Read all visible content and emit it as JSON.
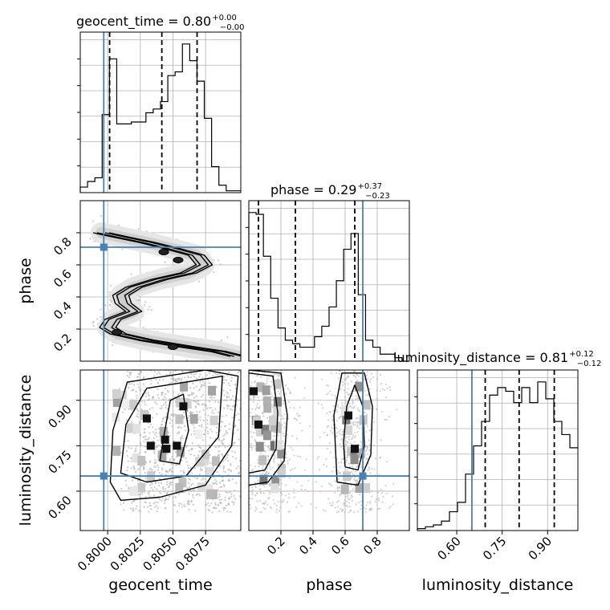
{
  "colors": {
    "truth": "#4682b4",
    "grid": "#b0b0b0",
    "hist": "#000000",
    "quantile": "#000000",
    "density": "#000000",
    "points": "#b4b4b4"
  },
  "chart_data": {
    "type": "corner",
    "parameters": [
      "geocent_time",
      "phase",
      "luminosity_distance"
    ],
    "truths": {
      "geocent_time": 0.7997,
      "phase": 0.71,
      "luminosity_distance": 0.65
    },
    "grid": true,
    "marginals": [
      {
        "param": "geocent_time",
        "title": {
          "main": "geocent_time = 0.80",
          "plus": "+0.00",
          "minus": "−0.00"
        },
        "range": [
          0.7979,
          0.8102
        ],
        "quantiles": [
          0.80015,
          0.80415,
          0.80685
        ],
        "ticks": [
          0.8,
          0.8025,
          0.805,
          0.8075
        ],
        "tick_labels": [
          "0.8000",
          "0.8025",
          "0.8050",
          "0.8075"
        ],
        "counts": [
          3,
          6,
          8,
          42,
          72,
          37,
          37,
          38,
          38,
          43,
          45,
          49,
          63,
          65,
          80,
          71,
          60,
          40,
          14,
          4,
          1,
          1
        ]
      },
      {
        "param": "phase",
        "title": {
          "main": "phase = 0.29",
          "plus": "+0.37",
          "minus": "−0.23"
        },
        "range": [
          0.0,
          1.0
        ],
        "quantiles": [
          0.06,
          0.29,
          0.66
        ],
        "ticks": [
          0.2,
          0.4,
          0.6,
          0.8
        ],
        "tick_labels": [
          "0.2",
          "0.4",
          "0.6",
          "0.8"
        ],
        "counts": [
          85,
          84,
          60,
          36,
          19,
          12,
          10,
          8,
          8,
          14,
          20,
          31,
          46,
          64,
          73,
          38,
          12,
          8,
          4,
          4,
          2,
          0
        ]
      },
      {
        "param": "luminosity_distance",
        "title": {
          "main": "luminosity_distance = 0.81",
          "plus": "+0.12",
          "minus": "−0.12"
        },
        "range": [
          0.47,
          1.0
        ],
        "quantiles": [
          0.694,
          0.806,
          0.922
        ],
        "ticks": [
          0.6,
          0.75,
          0.9
        ],
        "tick_labels": [
          "0.60",
          "0.75",
          "0.90"
        ],
        "counts": [
          1,
          2,
          3,
          5,
          10,
          15,
          30,
          45,
          58,
          72,
          76,
          74,
          68,
          76,
          68,
          79,
          70,
          58,
          51,
          44
        ]
      }
    ],
    "joint": [
      {
        "x": "geocent_time",
        "y": "phase",
        "yticks": [
          0.2,
          0.4,
          0.6,
          0.8
        ],
        "ytick_labels": [
          "0.2",
          "0.4",
          "0.6",
          "0.8"
        ],
        "density_path": [
          [
            0.7995,
            0.8
          ],
          [
            0.8012,
            0.77
          ],
          [
            0.803,
            0.74
          ],
          [
            0.805,
            0.7
          ],
          [
            0.8068,
            0.66
          ],
          [
            0.8074,
            0.6
          ],
          [
            0.8062,
            0.55
          ],
          [
            0.804,
            0.51
          ],
          [
            0.802,
            0.46
          ],
          [
            0.801,
            0.41
          ],
          [
            0.8012,
            0.36
          ],
          [
            0.802,
            0.31
          ],
          [
            0.8004,
            0.26
          ],
          [
            0.8,
            0.21
          ],
          [
            0.8008,
            0.17
          ],
          [
            0.803,
            0.13
          ],
          [
            0.806,
            0.09
          ],
          [
            0.8085,
            0.06
          ],
          [
            0.81,
            0.03
          ]
        ],
        "dense_spots": [
          [
            0.8007,
            0.18
          ],
          [
            0.805,
            0.09
          ],
          [
            0.8043,
            0.68
          ],
          [
            0.8054,
            0.63
          ]
        ]
      },
      {
        "x": "geocent_time",
        "y": "luminosity_distance",
        "yticks": [
          0.6,
          0.75,
          0.9
        ],
        "ytick_labels": [
          "0.60",
          "0.75",
          "0.90"
        ],
        "dense_spots": [
          [
            0.8053,
            0.75
          ],
          [
            0.8058,
            0.88
          ],
          [
            0.8044,
            0.77
          ],
          [
            0.8033,
            0.75
          ],
          [
            0.803,
            0.84
          ],
          [
            0.8045,
            0.74
          ]
        ]
      },
      {
        "x": "phase",
        "y": "luminosity_distance",
        "dense_spots": [
          [
            0.03,
            0.93
          ],
          [
            0.06,
            0.82
          ],
          [
            0.66,
            0.74
          ],
          [
            0.62,
            0.85
          ]
        ]
      }
    ]
  }
}
